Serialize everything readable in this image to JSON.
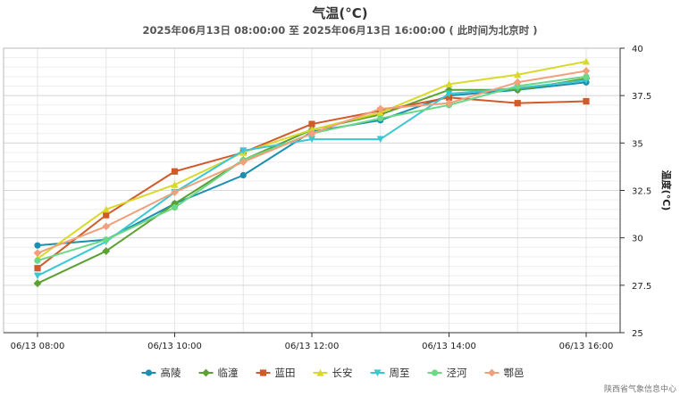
{
  "header": {
    "title": "气温(°C)",
    "subtitle": "2025年06月13日 08:00:00 至 2025年06月13日 16:00:00 ( 此时间为北京时 )"
  },
  "source": "陕西省气象信息中心",
  "chart_data": {
    "type": "line",
    "title": "气温(°C)",
    "subtitle": "2025年06月13日 08:00:00 至 2025年06月13日 16:00:00 ( 此时间为北京时 )",
    "ylabel": "温度(°C)",
    "x": [
      "08:00",
      "09:00",
      "10:00",
      "11:00",
      "12:00",
      "13:00",
      "14:00",
      "15:00",
      "16:00"
    ],
    "xtick_labels": [
      "06/13 08:00",
      "06/13 10:00",
      "06/13 12:00",
      "06/13 14:00",
      "06/13 16:00"
    ],
    "xtick_indices": [
      0,
      2,
      4,
      6,
      8
    ],
    "ylim": [
      25,
      40
    ],
    "yticks": [
      25,
      27.5,
      30,
      32.5,
      35,
      37.5,
      40
    ],
    "ytick_labels": [
      "25",
      "27.5",
      "30",
      "32.5",
      "35",
      "37.5",
      "40"
    ],
    "y_axis_side": "right",
    "grid": true,
    "legend_position": "bottom",
    "series": [
      {
        "name": "高陵",
        "color": "#1a8fb0",
        "marker": "circle",
        "values": [
          29.6,
          29.9,
          31.8,
          33.3,
          35.6,
          36.2,
          37.5,
          37.8,
          38.2
        ]
      },
      {
        "name": "临潼",
        "color": "#5ca132",
        "marker": "diamond",
        "values": [
          27.6,
          29.3,
          31.8,
          34.1,
          35.7,
          36.5,
          37.8,
          37.8,
          38.4
        ]
      },
      {
        "name": "蓝田",
        "color": "#d15a2b",
        "marker": "square",
        "values": [
          28.4,
          31.2,
          33.5,
          34.5,
          36.0,
          36.7,
          37.4,
          37.1,
          37.2
        ]
      },
      {
        "name": "长安",
        "color": "#d9d92b",
        "marker": "triangle",
        "values": [
          28.9,
          31.5,
          32.8,
          34.5,
          35.7,
          36.6,
          38.1,
          38.6,
          39.3
        ]
      },
      {
        "name": "周至",
        "color": "#3cc8d2",
        "marker": "triangle-down",
        "values": [
          28.0,
          29.8,
          32.4,
          34.6,
          35.2,
          35.2,
          37.6,
          37.9,
          38.3
        ]
      },
      {
        "name": "泾河",
        "color": "#6ad884",
        "marker": "circle",
        "values": [
          28.8,
          29.9,
          31.6,
          34.1,
          35.5,
          36.3,
          37.0,
          38.0,
          38.5
        ]
      },
      {
        "name": "鄠邑",
        "color": "#f0a07a",
        "marker": "diamond",
        "values": [
          29.2,
          30.6,
          32.4,
          34.0,
          35.5,
          36.8,
          37.1,
          38.2,
          38.8
        ]
      }
    ]
  }
}
